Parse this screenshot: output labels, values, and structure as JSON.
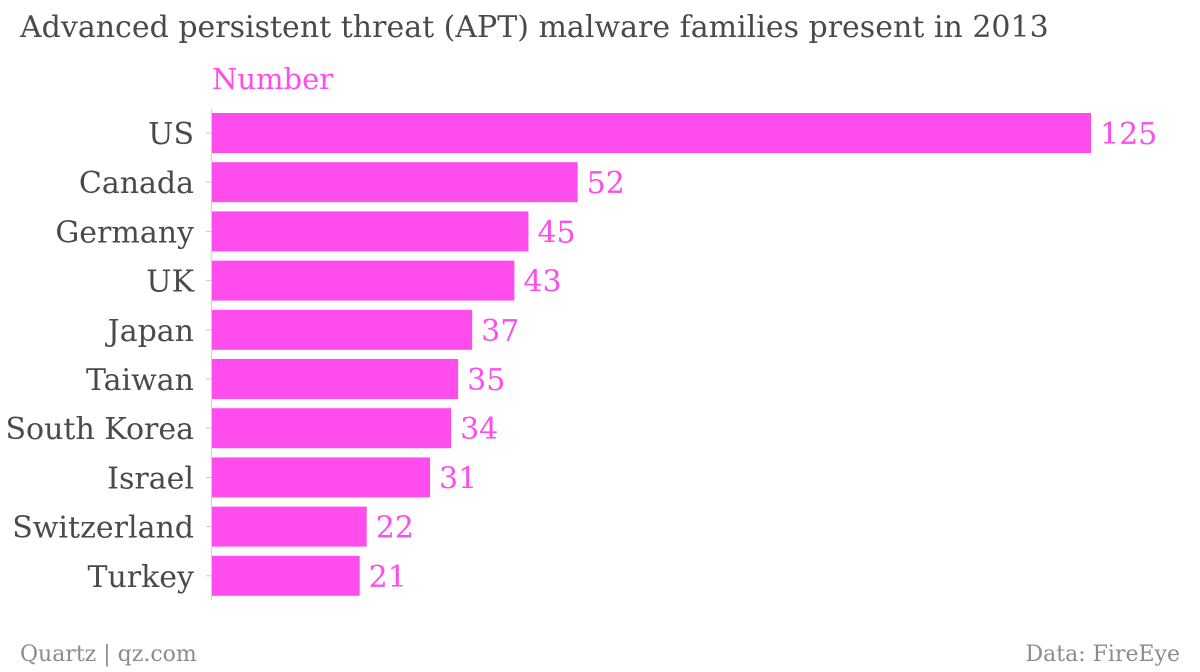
{
  "chart_data": {
    "type": "bar",
    "orientation": "horizontal",
    "title": "Advanced persistent threat (APT) malware families present in 2013",
    "series_label": "Number",
    "categories": [
      "US",
      "Canada",
      "Germany",
      "UK",
      "Japan",
      "Taiwan",
      "South Korea",
      "Israel",
      "Switzerland",
      "Turkey"
    ],
    "series": [
      {
        "name": "Number",
        "values": [
          125,
          52,
          45,
          43,
          37,
          35,
          34,
          31,
          22,
          21
        ]
      }
    ],
    "xlim": [
      0,
      125
    ],
    "grid": false,
    "data_labels": true,
    "bar_color": "#ff4ded",
    "label_color": "#ff4ded",
    "text_color": "#4a4a4a"
  },
  "footer": {
    "source_left": "Quartz | qz.com",
    "source_right": "Data: FireEye"
  }
}
